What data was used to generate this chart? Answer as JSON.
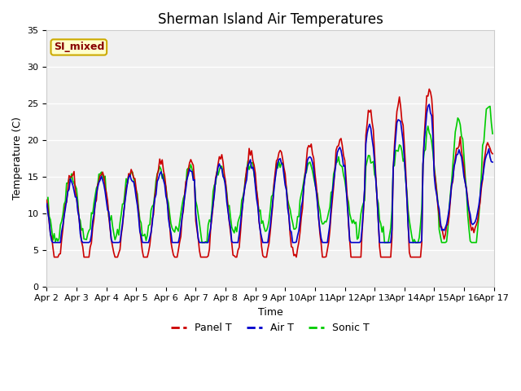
{
  "title": "Sherman Island Air Temperatures",
  "xlabel": "Time",
  "ylabel": "Temperature (C)",
  "legend_label": "SI_mixed",
  "ylim": [
    0,
    35
  ],
  "yticks": [
    0,
    5,
    10,
    15,
    20,
    25,
    30,
    35
  ],
  "series_labels": [
    "Panel T",
    "Air T",
    "Sonic T"
  ],
  "series_colors": [
    "#cc0000",
    "#0000cc",
    "#00cc00"
  ],
  "fig_bg_color": "#ffffff",
  "plot_bg_color": "#f0f0f0",
  "grid_color": "#ffffff",
  "title_fontsize": 12,
  "axis_label_fontsize": 9,
  "tick_label_fontsize": 8,
  "legend_box_facecolor": "#ffffcc",
  "legend_box_edgecolor": "#ccaa00",
  "legend_text_color": "#880000",
  "linewidth": 1.2
}
